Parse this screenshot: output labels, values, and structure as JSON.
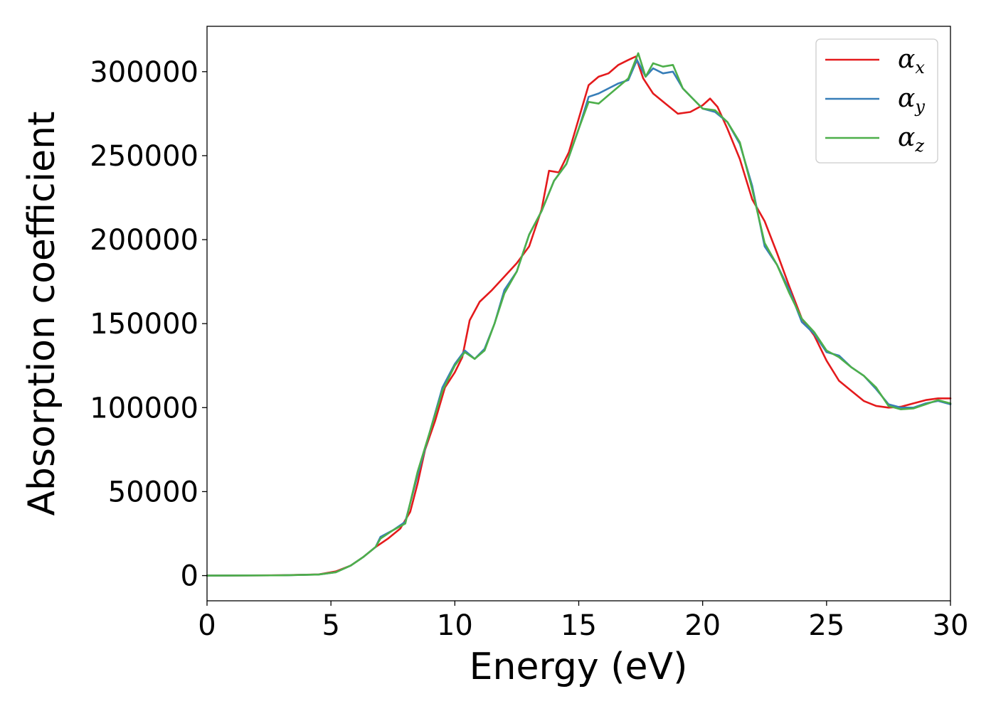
{
  "chart_data": {
    "type": "line",
    "xlabel": "Energy (eV)",
    "ylabel": "Absorption coefficient",
    "xlim": [
      0,
      30
    ],
    "ylim": [
      -15000,
      327000
    ],
    "x_ticks": [
      0,
      5,
      10,
      15,
      20,
      25,
      30
    ],
    "x_tick_labels": [
      "0",
      "5",
      "10",
      "15",
      "20",
      "25",
      "30"
    ],
    "y_ticks": [
      0,
      50000,
      100000,
      150000,
      200000,
      250000,
      300000
    ],
    "y_tick_labels": [
      "0",
      "50000",
      "100000",
      "150000",
      "200000",
      "250000",
      "300000"
    ],
    "grid": false,
    "legend_position": "top-right",
    "series": [
      {
        "name": "αx",
        "symbol": "α",
        "subscript": "x",
        "color": "#e41a1c",
        "x": [
          0,
          3,
          4.5,
          5.2,
          5.8,
          6.3,
          6.8,
          7.3,
          7.8,
          8.2,
          8.5,
          8.8,
          9.2,
          9.6,
          10.0,
          10.3,
          10.6,
          11.0,
          11.5,
          12.0,
          12.5,
          13.0,
          13.5,
          13.8,
          14.2,
          14.6,
          15.0,
          15.4,
          15.8,
          16.2,
          16.6,
          17.0,
          17.3,
          17.6,
          18.0,
          18.5,
          19.0,
          19.5,
          20.0,
          20.3,
          20.6,
          21.0,
          21.5,
          22.0,
          22.5,
          23.0,
          23.5,
          24.0,
          24.5,
          25.0,
          25.5,
          26.0,
          26.5,
          27.0,
          27.5,
          28.0,
          28.5,
          29.0,
          29.5,
          30.0
        ],
        "y": [
          0,
          200,
          700,
          2500,
          6000,
          11000,
          17000,
          22000,
          28000,
          38000,
          55000,
          75000,
          92000,
          112000,
          121000,
          130000,
          152000,
          163000,
          170000,
          178000,
          186000,
          196000,
          218000,
          241000,
          240000,
          252000,
          272000,
          292000,
          297000,
          299000,
          304000,
          307000,
          309000,
          296000,
          287000,
          281000,
          275000,
          276000,
          280000,
          284000,
          279000,
          266000,
          248000,
          224000,
          211000,
          192000,
          172000,
          153000,
          143000,
          128000,
          116000,
          110000,
          104000,
          101000,
          100000,
          100500,
          102500,
          104500,
          105500,
          105500
        ]
      },
      {
        "name": "αy",
        "symbol": "α",
        "subscript": "y",
        "color": "#377eb8",
        "x": [
          0,
          3,
          4.5,
          5.2,
          5.8,
          6.3,
          6.8,
          7.0,
          7.5,
          8.0,
          8.5,
          9.0,
          9.5,
          10.0,
          10.4,
          10.8,
          11.2,
          11.6,
          12.0,
          12.5,
          13.0,
          13.5,
          14.0,
          14.5,
          15.0,
          15.4,
          15.8,
          16.2,
          16.6,
          17.0,
          17.35,
          17.7,
          18.0,
          18.4,
          18.8,
          19.2,
          19.6,
          20.0,
          20.5,
          21.0,
          21.5,
          22.0,
          22.5,
          23.0,
          23.5,
          24.0,
          24.5,
          25.0,
          25.5,
          26.0,
          26.5,
          27.0,
          27.5,
          28.0,
          28.5,
          29.0,
          29.5,
          30.0
        ],
        "y": [
          0,
          150,
          600,
          2000,
          6000,
          11000,
          17000,
          23000,
          27000,
          32000,
          60000,
          86000,
          112000,
          126000,
          134000,
          129000,
          135000,
          150000,
          170000,
          181000,
          203000,
          217000,
          235000,
          245000,
          266000,
          285000,
          287000,
          290000,
          293000,
          295000,
          307000,
          297000,
          302000,
          299000,
          300000,
          290000,
          284000,
          278000,
          276000,
          270000,
          257000,
          232000,
          196000,
          185000,
          170000,
          151000,
          144000,
          133000,
          131000,
          124000,
          119000,
          111000,
          102000,
          100000,
          100000,
          102500,
          104000,
          102000
        ]
      },
      {
        "name": "αz",
        "symbol": "α",
        "subscript": "z",
        "color": "#4daf4a",
        "x": [
          0,
          3,
          4.5,
          5.2,
          5.8,
          6.3,
          6.8,
          7.0,
          7.5,
          8.0,
          8.5,
          9.0,
          9.5,
          10.0,
          10.4,
          10.8,
          11.2,
          11.6,
          12.0,
          12.5,
          13.0,
          13.5,
          14.0,
          14.5,
          15.0,
          15.4,
          15.8,
          16.2,
          16.6,
          17.0,
          17.4,
          17.7,
          18.0,
          18.4,
          18.8,
          19.2,
          19.6,
          20.0,
          20.5,
          21.0,
          21.5,
          22.0,
          22.5,
          23.0,
          23.5,
          24.0,
          24.5,
          25.0,
          25.5,
          26.0,
          26.5,
          27.0,
          27.5,
          28.0,
          28.5,
          29.0,
          29.5,
          30.0
        ],
        "y": [
          0,
          150,
          600,
          2000,
          6000,
          11000,
          17000,
          22000,
          27000,
          31000,
          62000,
          86000,
          110000,
          125000,
          133000,
          129000,
          134000,
          150000,
          168000,
          181000,
          203000,
          217000,
          235000,
          245000,
          266000,
          282000,
          281000,
          286000,
          291000,
          296000,
          311000,
          297000,
          305000,
          303000,
          304000,
          290000,
          284000,
          278000,
          277000,
          270000,
          258000,
          230000,
          198000,
          185000,
          168000,
          153000,
          145000,
          134000,
          130000,
          124000,
          119000,
          112000,
          101000,
          99000,
          99500,
          102000,
          104500,
          102500
        ]
      }
    ]
  }
}
